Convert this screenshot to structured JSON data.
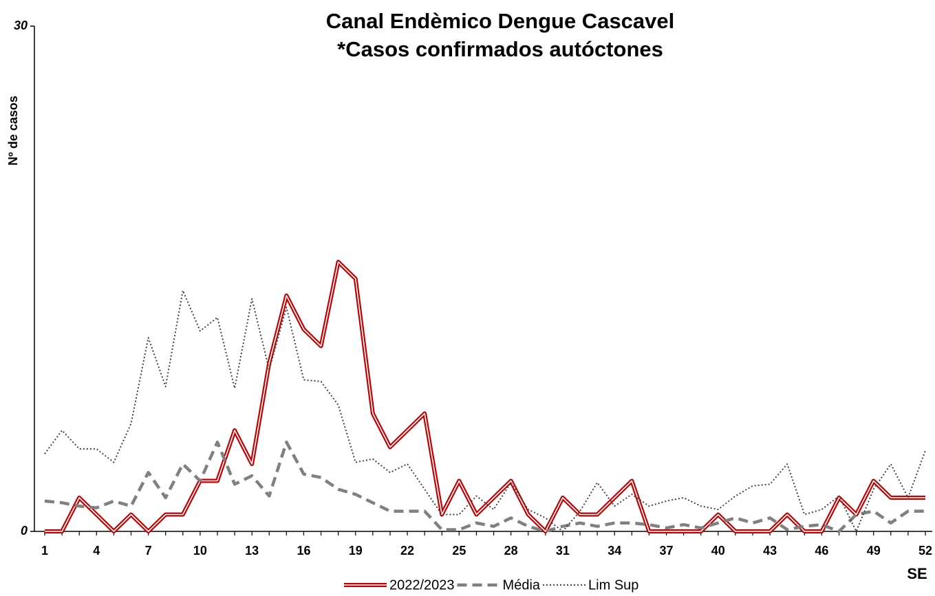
{
  "chart_data": {
    "type": "line",
    "title": "Canal Endèmico Dengue Cascavel",
    "subtitle": "*Casos confirmados autóctones",
    "y_label": "Nº de casos",
    "x_label": "SE",
    "x": [
      1,
      2,
      3,
      4,
      5,
      6,
      7,
      8,
      9,
      10,
      11,
      12,
      13,
      14,
      15,
      16,
      17,
      18,
      19,
      20,
      21,
      22,
      23,
      24,
      25,
      26,
      27,
      28,
      29,
      30,
      31,
      32,
      33,
      34,
      35,
      36,
      37,
      38,
      39,
      40,
      41,
      42,
      43,
      44,
      45,
      46,
      47,
      48,
      49,
      50,
      51,
      52
    ],
    "xlim": [
      1,
      52
    ],
    "xticks": [
      1,
      4,
      7,
      10,
      13,
      16,
      19,
      22,
      25,
      28,
      31,
      34,
      37,
      40,
      43,
      46,
      49,
      52
    ],
    "ylim": [
      0,
      30
    ],
    "yticks": [
      0,
      30
    ],
    "legend": "bottom",
    "series": [
      {
        "name": "2022/2023",
        "color": "#c00000",
        "style": "double",
        "values": [
          0,
          0,
          2,
          1,
          0,
          1,
          0,
          1,
          1,
          3,
          3,
          6,
          4,
          10,
          14,
          12,
          11,
          16,
          15,
          7,
          5,
          6,
          7,
          1,
          3,
          1,
          2,
          3,
          1,
          0,
          2,
          1,
          1,
          2,
          3,
          0,
          0,
          0,
          0,
          1,
          0,
          0,
          0,
          1,
          0,
          0,
          2,
          1,
          3,
          2,
          2,
          2
        ]
      },
      {
        "name": "Média",
        "color": "#808080",
        "style": "dashed",
        "values": [
          1.8,
          1.7,
          1.5,
          1.4,
          1.8,
          1.5,
          3.5,
          2,
          4,
          3,
          5.3,
          2.8,
          3.3,
          2.1,
          5.3,
          3.4,
          3.2,
          2.5,
          2.2,
          1.7,
          1.2,
          1.2,
          1.2,
          0.1,
          0.1,
          0.5,
          0.3,
          0.8,
          0.3,
          0,
          0.3,
          0.5,
          0.3,
          0.5,
          0.5,
          0.4,
          0.2,
          0.4,
          0.2,
          0.5,
          0.8,
          0.5,
          0.8,
          0.1,
          0.3,
          0.4,
          0,
          1,
          1.2,
          0.5,
          1.2,
          1.2
        ]
      },
      {
        "name": "Lim Sup",
        "color": "#404040",
        "style": "dotted",
        "values": [
          4.6,
          6,
          4.9,
          4.9,
          4.1,
          6.4,
          11.5,
          8.6,
          14.3,
          11.9,
          12.7,
          8.5,
          13.8,
          9.6,
          13.3,
          9,
          8.9,
          7.5,
          4.1,
          4.3,
          3.5,
          4,
          2.5,
          1,
          1,
          2.1,
          1.3,
          2.9,
          1.3,
          0.8,
          0,
          1.2,
          2.9,
          1.5,
          2.2,
          1.5,
          1.8,
          2,
          1.5,
          1.3,
          2.1,
          2.7,
          2.8,
          4,
          1,
          1.3,
          2.1,
          0,
          2.5,
          4,
          2,
          4.8
        ]
      }
    ]
  }
}
